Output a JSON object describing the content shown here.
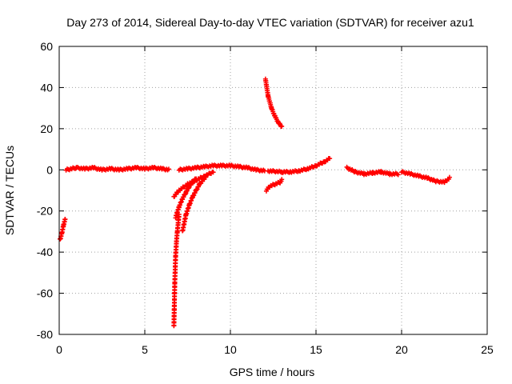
{
  "chart_data": {
    "type": "scatter",
    "title": "Day 273 of 2014, Sidereal Day-to-day VTEC variation (SDTVAR) for receiver azu1",
    "xlabel": "GPS time / hours",
    "ylabel": "SDTVAR / TECUs",
    "xlim": [
      0,
      25
    ],
    "ylim": [
      -80,
      60
    ],
    "xticks": [
      0,
      5,
      10,
      15,
      20,
      25
    ],
    "yticks": [
      -80,
      -60,
      -40,
      -20,
      0,
      20,
      40,
      60
    ],
    "grid": true,
    "marker": "plus",
    "series_color": "#ff0000",
    "segments": [
      {
        "x": [
          0.05,
          0.15,
          0.25,
          0.35
        ],
        "y": [
          -34,
          -31,
          -27,
          -24
        ]
      },
      {
        "x": [
          0.4,
          1.0,
          1.5,
          2.0,
          2.5,
          3.0,
          3.5,
          4.0,
          4.5,
          5.0,
          5.5,
          6.0,
          6.4
        ],
        "y": [
          0,
          1,
          0.5,
          1,
          0,
          0.5,
          0,
          0.5,
          1,
          0.5,
          1,
          0.5,
          0
        ]
      },
      {
        "x": [
          6.7,
          6.72,
          6.75,
          6.8,
          6.85,
          6.9,
          6.95,
          7.0
        ],
        "y": [
          -76,
          -68,
          -55,
          -42,
          -35,
          -30,
          -26,
          -22
        ]
      },
      {
        "x": [
          6.8,
          7.0,
          7.2,
          7.4,
          7.6,
          7.8,
          8.0
        ],
        "y": [
          -23,
          -18,
          -14,
          -11,
          -8,
          -6,
          -4
        ]
      },
      {
        "x": [
          6.7,
          7.0,
          7.5,
          8.0,
          8.5,
          9.0
        ],
        "y": [
          -13,
          -10,
          -7,
          -5,
          -3,
          -1
        ]
      },
      {
        "x": [
          7.2,
          7.4,
          7.6,
          7.8,
          8.0,
          8.2,
          8.4,
          8.6
        ],
        "y": [
          -30,
          -22,
          -17,
          -13,
          -10,
          -7,
          -5,
          -3
        ]
      },
      {
        "x": [
          7.0,
          7.5,
          8.0,
          8.5,
          9.0,
          9.5,
          10.0,
          10.5,
          11.0,
          11.5,
          12.0
        ],
        "y": [
          0,
          0.5,
          1,
          1.5,
          2,
          2,
          2,
          1.5,
          1,
          0,
          -0.5
        ]
      },
      {
        "x": [
          12.05,
          12.2,
          12.4,
          12.6,
          12.8,
          13.0
        ],
        "y": [
          44,
          36,
          30,
          26,
          23,
          21
        ]
      },
      {
        "x": [
          12.1,
          12.3,
          12.6,
          12.9,
          13.0
        ],
        "y": [
          -10,
          -8,
          -7,
          -6,
          -5
        ]
      },
      {
        "x": [
          12.2,
          13.0,
          13.5,
          14.0,
          14.5,
          15.0,
          15.5,
          15.8
        ],
        "y": [
          -0.5,
          -1,
          -1,
          -0.5,
          0.5,
          2,
          4,
          5.5
        ]
      },
      {
        "x": [
          16.8,
          17.3,
          17.8,
          18.3,
          18.8,
          19.3,
          19.8
        ],
        "y": [
          1,
          -1,
          -2,
          -1.5,
          -1,
          -2,
          -2
        ]
      },
      {
        "x": [
          20.0,
          20.5,
          21.0,
          21.5,
          22.0,
          22.5,
          22.8
        ],
        "y": [
          -1,
          -2,
          -3,
          -4,
          -5.5,
          -6,
          -4
        ]
      }
    ]
  }
}
